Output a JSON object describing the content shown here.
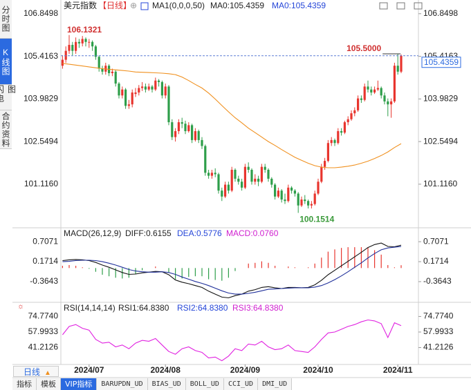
{
  "sidebar": [
    "分时图",
    "K线图",
    "闪电图",
    "合约资料"
  ],
  "period_button": "日线",
  "bottom_tabs": [
    "指标",
    "模板",
    "VIP指标",
    "BARUPDN_UD",
    "BIAS_UD",
    "BOLL_UD",
    "CCI_UD",
    "DMI_UD"
  ],
  "chart_data": [
    {
      "type": "candlestick",
      "title": "美元指数",
      "period": "【日线】",
      "legend": [
        {
          "text": "MA1(0,0,0,50)",
          "color": "#222222"
        },
        {
          "text": "MA0:105.4359",
          "color": "#222222"
        },
        {
          "text": "MA0:105.4359",
          "color": "#2546d8"
        }
      ],
      "ylim": [
        99.65,
        107.31
      ],
      "yticks": [
        106.8498,
        105.4163,
        103.9829,
        102.5494,
        {
          "value": 101.116,
          "label": "101.1160"
        }
      ],
      "up_color": "#e8352e",
      "down_color": "#2e9e4a",
      "candles": [
        [
          105.1,
          105.45,
          105.0,
          105.3
        ],
        [
          105.3,
          105.75,
          105.2,
          105.6
        ],
        [
          105.6,
          106.1321,
          105.5,
          105.8
        ],
        [
          105.8,
          105.9,
          105.45,
          105.6
        ],
        [
          105.6,
          106.05,
          105.5,
          105.9
        ],
        [
          105.9,
          106.0,
          105.7,
          105.85
        ],
        [
          105.85,
          106.1,
          105.75,
          106.0
        ],
        [
          106.0,
          106.05,
          105.75,
          105.9
        ],
        [
          105.88,
          106.0,
          105.7,
          105.9
        ],
        [
          105.9,
          105.95,
          105.6,
          105.75
        ],
        [
          105.75,
          105.8,
          105.3,
          105.4
        ],
        [
          105.4,
          105.45,
          104.9,
          105.0
        ],
        [
          105.0,
          105.1,
          104.8,
          104.9
        ],
        [
          104.9,
          105.2,
          104.8,
          105.1
        ],
        [
          105.1,
          105.15,
          104.75,
          104.85
        ],
        [
          104.85,
          105.0,
          104.75,
          104.9
        ],
        [
          104.9,
          104.95,
          104.4,
          104.5
        ],
        [
          104.5,
          104.55,
          104.0,
          104.1
        ],
        [
          104.1,
          104.4,
          104.0,
          104.3
        ],
        [
          104.3,
          104.35,
          103.65,
          103.75
        ],
        [
          103.75,
          103.95,
          103.65,
          103.8
        ],
        [
          103.8,
          104.3,
          103.7,
          104.2
        ],
        [
          104.15,
          104.35,
          104.05,
          104.2
        ],
        [
          104.2,
          104.45,
          104.1,
          104.35
        ],
        [
          104.35,
          104.55,
          104.25,
          104.4
        ],
        [
          104.4,
          104.5,
          104.2,
          104.3
        ],
        [
          104.3,
          104.5,
          104.25,
          104.4
        ],
        [
          104.4,
          104.45,
          104.2,
          104.3
        ],
        [
          104.3,
          104.7,
          104.25,
          104.6
        ],
        [
          104.6,
          104.65,
          104.4,
          104.55
        ],
        [
          104.55,
          104.6,
          104.0,
          104.1
        ],
        [
          104.1,
          104.5,
          104.0,
          104.4
        ],
        [
          104.4,
          104.45,
          103.1,
          103.2
        ],
        [
          103.2,
          103.3,
          102.6,
          102.7
        ],
        [
          102.7,
          103.0,
          102.55,
          102.9
        ],
        [
          102.9,
          103.3,
          102.8,
          103.2
        ],
        [
          103.2,
          103.35,
          103.0,
          103.15
        ],
        [
          103.15,
          103.25,
          102.8,
          102.9
        ],
        [
          102.9,
          103.2,
          102.85,
          103.1
        ],
        [
          103.1,
          103.15,
          102.5,
          102.6
        ],
        [
          102.6,
          103.0,
          102.55,
          102.9
        ],
        [
          102.9,
          102.95,
          102.5,
          102.6
        ],
        [
          102.6,
          102.7,
          102.3,
          102.4
        ],
        [
          102.4,
          102.45,
          101.4,
          101.5
        ],
        [
          101.5,
          101.6,
          101.3,
          101.4
        ],
        [
          101.4,
          101.6,
          101.3,
          101.5
        ],
        [
          101.5,
          101.65,
          101.35,
          101.45
        ],
        [
          101.45,
          101.5,
          100.8,
          100.9
        ],
        [
          100.9,
          101.0,
          100.55,
          100.7
        ],
        [
          100.7,
          101.2,
          100.65,
          101.1
        ],
        [
          101.1,
          101.2,
          100.8,
          100.9
        ],
        [
          100.9,
          101.7,
          100.85,
          101.6
        ],
        [
          101.6,
          101.65,
          101.2,
          101.3
        ],
        [
          101.3,
          101.4,
          101.1,
          101.2
        ],
        [
          101.2,
          101.3,
          100.9,
          101.0
        ],
        [
          101.0,
          101.8,
          100.95,
          101.7
        ],
        [
          101.7,
          101.85,
          101.5,
          101.6
        ],
        [
          101.6,
          101.65,
          101.1,
          101.2
        ],
        [
          101.2,
          101.45,
          101.1,
          101.3
        ],
        [
          101.3,
          101.4,
          101.05,
          101.2
        ],
        [
          101.2,
          101.8,
          101.15,
          101.7
        ],
        [
          101.7,
          101.8,
          101.5,
          101.6
        ],
        [
          101.6,
          101.65,
          101.2,
          101.3
        ],
        [
          101.3,
          101.35,
          101.0,
          101.1
        ],
        [
          101.1,
          101.15,
          100.6,
          100.7
        ],
        [
          100.7,
          101.0,
          100.65,
          100.9
        ],
        [
          100.9,
          100.95,
          100.5,
          100.6
        ],
        [
          100.6,
          100.8,
          100.45,
          100.55
        ],
        [
          100.55,
          101.1,
          100.5,
          101.0
        ],
        [
          101.0,
          101.05,
          100.8,
          100.9
        ],
        [
          100.9,
          100.95,
          100.7,
          100.8
        ],
        [
          100.8,
          100.85,
          100.1514,
          100.4
        ],
        [
          100.4,
          100.7,
          100.35,
          100.6
        ],
        [
          100.6,
          100.75,
          100.45,
          100.55
        ],
        [
          100.55,
          100.6,
          100.3,
          100.4
        ],
        [
          100.4,
          100.55,
          100.3,
          100.45
        ],
        [
          100.45,
          100.9,
          100.4,
          100.8
        ],
        [
          100.8,
          101.3,
          100.75,
          101.2
        ],
        [
          101.2,
          101.8,
          101.15,
          101.7
        ],
        [
          101.7,
          102.0,
          101.6,
          101.9
        ],
        [
          101.9,
          102.6,
          101.85,
          102.5
        ],
        [
          102.5,
          102.7,
          102.4,
          102.6
        ],
        [
          102.6,
          102.65,
          102.4,
          102.5
        ],
        [
          102.5,
          103.0,
          102.45,
          102.9
        ],
        [
          102.9,
          103.0,
          102.75,
          102.85
        ],
        [
          102.85,
          103.25,
          102.8,
          103.2
        ],
        [
          103.2,
          103.4,
          103.1,
          103.3
        ],
        [
          103.3,
          103.6,
          103.25,
          103.5
        ],
        [
          103.5,
          103.7,
          103.4,
          103.6
        ],
        [
          103.6,
          104.1,
          103.55,
          104.0
        ],
        [
          104.0,
          104.1,
          103.85,
          103.95
        ],
        [
          103.95,
          104.5,
          103.9,
          104.4
        ],
        [
          104.4,
          104.6,
          104.2,
          104.3
        ],
        [
          104.3,
          104.4,
          104.1,
          104.2
        ],
        [
          104.2,
          104.4,
          104.15,
          104.3
        ],
        [
          104.3,
          104.6,
          104.25,
          104.35
        ],
        [
          104.35,
          104.4,
          104.0,
          104.1
        ],
        [
          104.1,
          104.2,
          103.8,
          103.9
        ],
        [
          103.9,
          104.0,
          103.4,
          103.8
        ],
        [
          103.8,
          104.0,
          103.35,
          103.9
        ],
        [
          103.9,
          105.2,
          103.85,
          105.1
        ],
        [
          105.1,
          105.5,
          104.8,
          104.9
        ],
        [
          104.9,
          105.48,
          104.85,
          105.4359
        ]
      ],
      "high_labels": [
        {
          "candle": 2,
          "label": "106.1321"
        },
        {
          "candle": 101,
          "label": "105.5000"
        }
      ],
      "low_labels": [
        {
          "candle": 71,
          "label": "100.1514"
        }
      ],
      "x": [
        0,
        2,
        4,
        6,
        8,
        10,
        12,
        14,
        16,
        18,
        20,
        22,
        24,
        26,
        28,
        30,
        32,
        34,
        36,
        38,
        40,
        42,
        44,
        46,
        48,
        50,
        52,
        54,
        56,
        58,
        60,
        62,
        64,
        66,
        68,
        70,
        72,
        74,
        76,
        78,
        80,
        82,
        84,
        86,
        88,
        90,
        92,
        94,
        96,
        98,
        100,
        102
      ],
      "series": [
        {
          "color": "#f0901e",
          "values": [
            105.18,
            105.15,
            105.12,
            105.09,
            105.06,
            105.03,
            105.0,
            104.98,
            104.96,
            104.94,
            104.92,
            104.89,
            104.88,
            104.87,
            104.86,
            104.85,
            104.83,
            104.8,
            104.72,
            104.6,
            104.47,
            104.35,
            104.18,
            103.98,
            103.76,
            103.55,
            103.35,
            103.18,
            103.0,
            102.85,
            102.7,
            102.55,
            102.42,
            102.28,
            102.15,
            102.02,
            101.92,
            101.82,
            101.74,
            101.69,
            101.67,
            101.67,
            101.69,
            101.72,
            101.76,
            101.82,
            101.89,
            101.98,
            102.08,
            102.2,
            102.35,
            102.48
          ]
        }
      ]
    },
    {
      "type": "bar",
      "legend": [
        {
          "text": "MACD(26,12,9)",
          "color": "#222222"
        },
        {
          "text": "DIFF:0.6155",
          "color": "#222222"
        },
        {
          "text": "DEA:0.5776",
          "color": "#2546d8"
        },
        {
          "text": "MACD:0.0760",
          "color": "#d020d0"
        }
      ],
      "ylim": [
        -0.92,
        1.08
      ],
      "yticks": [
        0.7071,
        0.1714,
        -0.3643
      ],
      "up_color": "#e8352e",
      "down_color": "#2e9e4a",
      "x": [
        0,
        2,
        4,
        6,
        8,
        10,
        12,
        14,
        16,
        18,
        20,
        22,
        24,
        26,
        28,
        30,
        32,
        34,
        36,
        38,
        40,
        42,
        44,
        46,
        48,
        50,
        52,
        54,
        56,
        58,
        60,
        62,
        64,
        66,
        68,
        70,
        72,
        74,
        76,
        78,
        80,
        82,
        84,
        86,
        88,
        90,
        92,
        94,
        96,
        98,
        100,
        102
      ],
      "values": [
        0.06,
        0.08,
        0.06,
        0.02,
        -0.02,
        -0.1,
        -0.18,
        -0.22,
        -0.26,
        -0.28,
        -0.26,
        -0.16,
        -0.06,
        0.0,
        0.04,
        0.0,
        -0.12,
        -0.3,
        -0.28,
        -0.24,
        -0.22,
        -0.22,
        -0.3,
        -0.32,
        -0.34,
        -0.26,
        -0.08,
        0.0,
        0.12,
        0.14,
        0.18,
        0.14,
        0.06,
        0.0,
        0.04,
        0.02,
        0.0,
        0.02,
        0.12,
        0.28,
        0.44,
        0.5,
        0.54,
        0.56,
        0.56,
        0.56,
        0.56,
        0.48,
        0.36,
        0.08,
        0.02,
        0.076
      ],
      "series": [
        {
          "color": "#111111",
          "values": [
            0.2,
            0.22,
            0.23,
            0.22,
            0.2,
            0.15,
            0.08,
            0.02,
            -0.05,
            -0.12,
            -0.17,
            -0.16,
            -0.13,
            -0.11,
            -0.09,
            -0.1,
            -0.18,
            -0.32,
            -0.38,
            -0.42,
            -0.47,
            -0.52,
            -0.62,
            -0.7,
            -0.78,
            -0.8,
            -0.74,
            -0.7,
            -0.62,
            -0.58,
            -0.52,
            -0.5,
            -0.53,
            -0.55,
            -0.52,
            -0.52,
            -0.53,
            -0.52,
            -0.45,
            -0.33,
            -0.18,
            -0.06,
            0.06,
            0.18,
            0.3,
            0.42,
            0.55,
            0.63,
            0.67,
            0.58,
            0.57,
            0.6155
          ]
        },
        {
          "color": "#1f2f9a",
          "values": [
            0.17,
            0.18,
            0.2,
            0.21,
            0.21,
            0.2,
            0.17,
            0.13,
            0.08,
            0.02,
            -0.04,
            -0.08,
            -0.1,
            -0.11,
            -0.11,
            -0.1,
            -0.12,
            -0.17,
            -0.24,
            -0.3,
            -0.36,
            -0.41,
            -0.47,
            -0.54,
            -0.61,
            -0.67,
            -0.7,
            -0.7,
            -0.68,
            -0.65,
            -0.61,
            -0.57,
            -0.56,
            -0.55,
            -0.54,
            -0.53,
            -0.53,
            -0.53,
            -0.51,
            -0.47,
            -0.4,
            -0.31,
            -0.21,
            -0.1,
            0.02,
            0.14,
            0.27,
            0.39,
            0.49,
            0.54,
            0.56,
            0.5776
          ]
        }
      ]
    },
    {
      "type": "line",
      "legend": [
        {
          "text": "RSI(14,14,14)",
          "color": "#222222"
        },
        {
          "text": "RSI1:64.8380",
          "color": "#222222"
        },
        {
          "text": "RSI2:64.8380",
          "color": "#2546d8"
        },
        {
          "text": "RSI3:64.8380",
          "color": "#d020d0"
        }
      ],
      "ylim": [
        23,
        90
      ],
      "yticks": [
        {
          "value": 74.774,
          "label": "74.7740"
        },
        57.9933,
        41.2126
      ],
      "xticks": [
        {
          "value": 8,
          "label": "2024/07"
        },
        {
          "value": 31,
          "label": "2024/08"
        },
        {
          "value": 55,
          "label": "2024/09"
        },
        {
          "value": 77,
          "label": "2024/10"
        },
        {
          "value": 101,
          "label": "2024/11"
        }
      ],
      "x": [
        0,
        2,
        4,
        6,
        8,
        10,
        12,
        14,
        16,
        18,
        20,
        22,
        24,
        26,
        28,
        30,
        32,
        34,
        36,
        38,
        40,
        42,
        44,
        46,
        48,
        50,
        52,
        54,
        56,
        58,
        60,
        62,
        64,
        66,
        68,
        70,
        72,
        74,
        76,
        78,
        80,
        82,
        84,
        86,
        88,
        90,
        92,
        94,
        96,
        98,
        100,
        102
      ],
      "series": [
        {
          "color": "#e020e0",
          "values": [
            55,
            64,
            66,
            62,
            60,
            50,
            46,
            47,
            42,
            44,
            40,
            46,
            49,
            48,
            51,
            44,
            37,
            34,
            40,
            42,
            38,
            36,
            30,
            31,
            27,
            32,
            40,
            38,
            45,
            44,
            48,
            42,
            39,
            40,
            44,
            38,
            37,
            36,
            42,
            50,
            57,
            58,
            61,
            64,
            66,
            69,
            71,
            70,
            67,
            52,
            68,
            64.838
          ]
        }
      ]
    }
  ]
}
